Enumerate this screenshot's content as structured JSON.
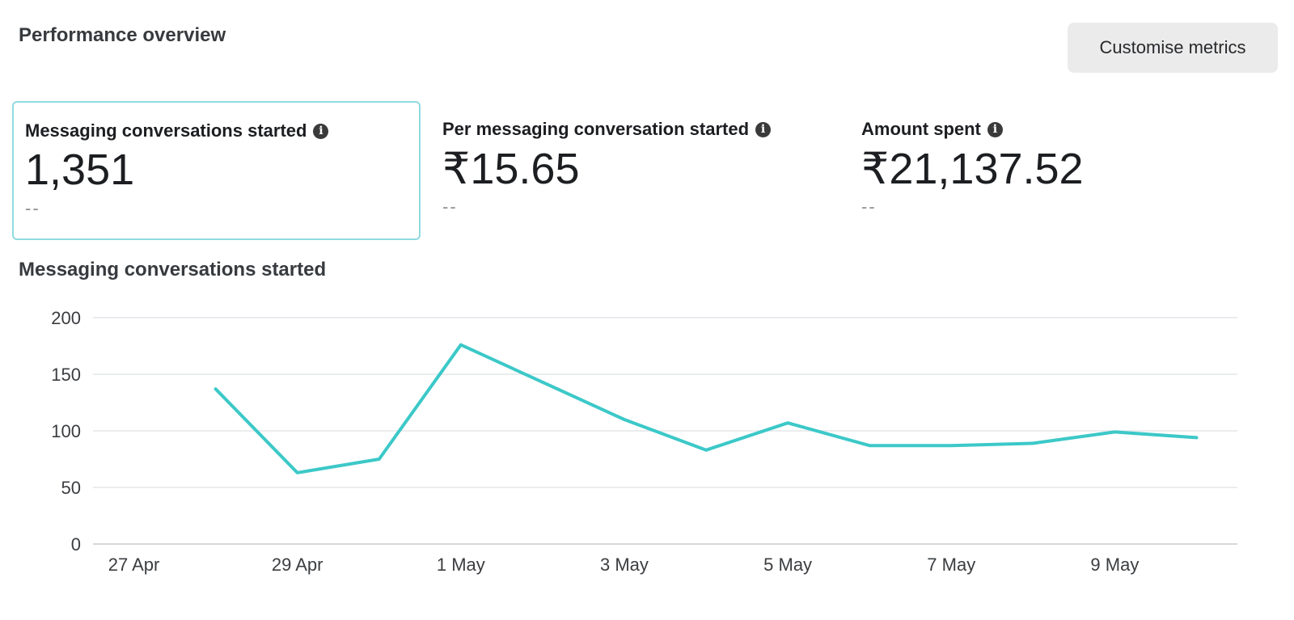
{
  "header": {
    "title": "Performance overview",
    "customise_label": "Customise metrics"
  },
  "metrics": [
    {
      "label": "Messaging conversations started",
      "value": "1,351",
      "delta": "--",
      "selected": true
    },
    {
      "label": "Per messaging conversation started",
      "value": "₹15.65",
      "delta": "--",
      "selected": false
    },
    {
      "label": "Amount spent",
      "value": "₹21,137.52",
      "delta": "--",
      "selected": false
    }
  ],
  "chart": {
    "title": "Messaging conversations started"
  },
  "colors": {
    "line": "#3cc8c8",
    "selected_border": "#8fdbe0"
  },
  "chart_data": {
    "type": "line",
    "x": [
      "27 Apr",
      "28 Apr",
      "29 Apr",
      "30 Apr",
      "1 May",
      "2 May",
      "3 May",
      "4 May",
      "5 May",
      "6 May",
      "7 May",
      "8 May",
      "9 May",
      "10 May"
    ],
    "series": [
      {
        "values": [
          null,
          137,
          63,
          75,
          176,
          143,
          110,
          83,
          107,
          87,
          87,
          89,
          99,
          94
        ]
      }
    ],
    "xticks": [
      "27 Apr",
      "29 Apr",
      "1 May",
      "3 May",
      "5 May",
      "7 May",
      "9 May"
    ],
    "yticks": [
      0,
      50,
      100,
      150,
      200
    ],
    "ylim": [
      0,
      200
    ],
    "grid": true
  }
}
